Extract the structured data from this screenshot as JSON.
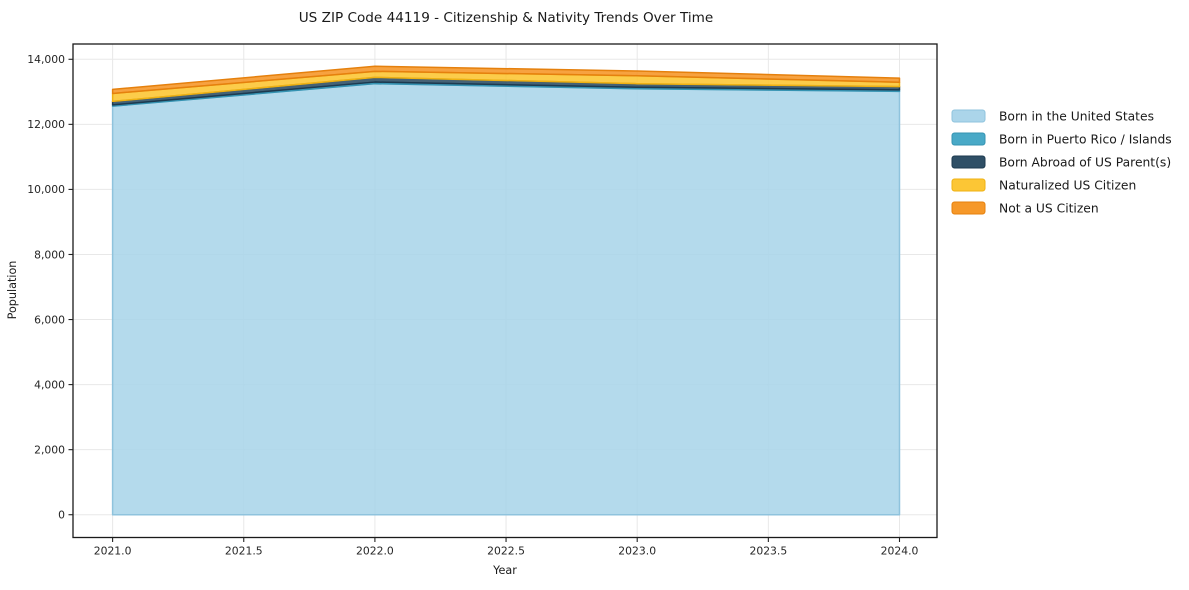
{
  "figure": {
    "background": "#ffffff"
  },
  "chart_data": {
    "type": "area",
    "stacked": true,
    "title": "US ZIP Code 44119 - Citizenship & Nativity Trends Over Time",
    "xlabel": "Year",
    "ylabel": "Population",
    "x": [
      2021,
      2022,
      2023,
      2024
    ],
    "series": [
      {
        "name": "Born in the United States",
        "color": "#a7d3e9",
        "edge": "#8fc3dd",
        "values": [
          12560,
          13250,
          13095,
          13015
        ]
      },
      {
        "name": "Born in Puerto Rico / Islands",
        "color": "#3fa4c4",
        "edge": "#3593b2",
        "values": [
          40,
          50,
          45,
          45
        ]
      },
      {
        "name": "Born Abroad of US Parent(s)",
        "color": "#24465e",
        "edge": "#1d3a4f",
        "values": [
          105,
          145,
          110,
          100
        ]
      },
      {
        "name": "Naturalized US Citizen",
        "color": "#fcc32a",
        "edge": "#efb112",
        "values": [
          245,
          185,
          245,
          135
        ]
      },
      {
        "name": "Not a US Citizen",
        "color": "#f6921e",
        "edge": "#e5800d",
        "values": [
          125,
          155,
          145,
          125
        ]
      }
    ],
    "stack_totals": [
      13075,
      13785,
      13640,
      13420
    ],
    "xlim": [
      2020.849,
      2024.143
    ],
    "ylim": [
      -700,
      14470
    ],
    "xticks": {
      "values": [
        2021.0,
        2021.5,
        2022.0,
        2022.5,
        2023.0,
        2023.5,
        2024.0
      ],
      "labels": [
        "2021.0",
        "2021.5",
        "2022.0",
        "2022.5",
        "2023.0",
        "2023.5",
        "2024.0"
      ]
    },
    "yticks": {
      "values": [
        0,
        2000,
        4000,
        6000,
        8000,
        10000,
        12000,
        14000
      ],
      "labels": [
        "0",
        "2,000",
        "4,000",
        "6,000",
        "8,000",
        "10,000",
        "12,000",
        "14,000"
      ]
    },
    "grid": true,
    "grid_color": "#e8e8e8",
    "fill_alpha": 0.85,
    "legend_position": "right-outside"
  }
}
